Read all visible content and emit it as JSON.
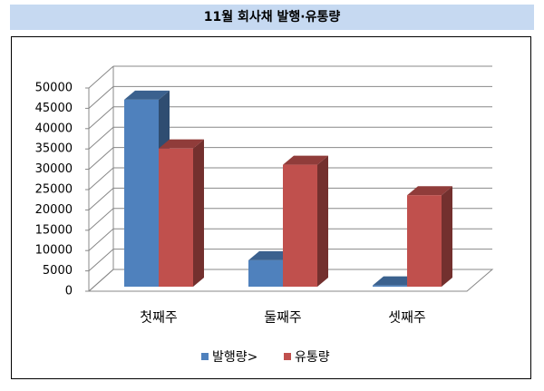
{
  "chart_data": {
    "type": "bar3d",
    "title": "11월 회사채 발행·유통량",
    "categories": [
      "첫째주",
      "둘째주",
      "셋째주"
    ],
    "series": [
      {
        "name": "발행량>",
        "color": "#4f81bd",
        "values": [
          46000,
          6500,
          300
        ]
      },
      {
        "name": "유통량",
        "color": "#c0504d",
        "values": [
          34000,
          30000,
          22500
        ]
      }
    ],
    "ylim": [
      0,
      50000
    ],
    "yticks": [
      0,
      5000,
      10000,
      15000,
      20000,
      25000,
      30000,
      35000,
      40000,
      45000,
      50000
    ],
    "grid": true,
    "legend": "bottom"
  }
}
